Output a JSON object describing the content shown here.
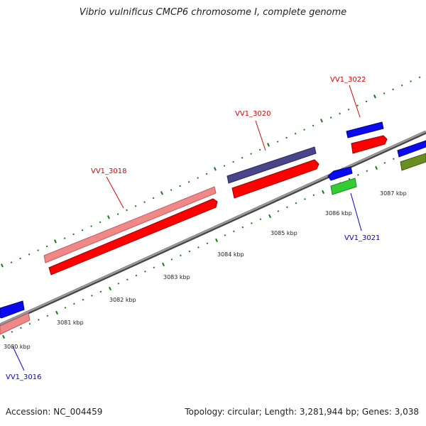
{
  "title": "Vibrio vulnificus CMCP6 chromosome I, complete genome",
  "accession": "Accession: NC_004459",
  "topology": "Topology: circular; Length: 3,281,944 bp; Genes: 3,038",
  "colors": {
    "backbone": "#888888",
    "tick": "#1a7a1a",
    "label_forward": "#e00000",
    "label_reverse": "#0000dd",
    "cds_forward": "#ff0000",
    "cds_reverse": "#0000ee",
    "cog_pink": "#f08888",
    "cog_purple": "#4a4488",
    "cog_green": "#33cc33",
    "cog_olive": "#6b8e23"
  },
  "gene_labels": [
    {
      "text": "VV1_3016",
      "strand": "reverse"
    },
    {
      "text": "VV1_3018",
      "strand": "forward"
    },
    {
      "text": "VV1_3020",
      "strand": "forward"
    },
    {
      "text": "VV1_3021",
      "strand": "reverse"
    },
    {
      "text": "VV1_3022",
      "strand": "forward"
    }
  ],
  "scale_labels": [
    "3080 kbp",
    "3081 kbp",
    "3082 kbp",
    "3083 kbp",
    "3084 kbp",
    "3085 kbp",
    "3086 kbp",
    "3087 kbp"
  ]
}
